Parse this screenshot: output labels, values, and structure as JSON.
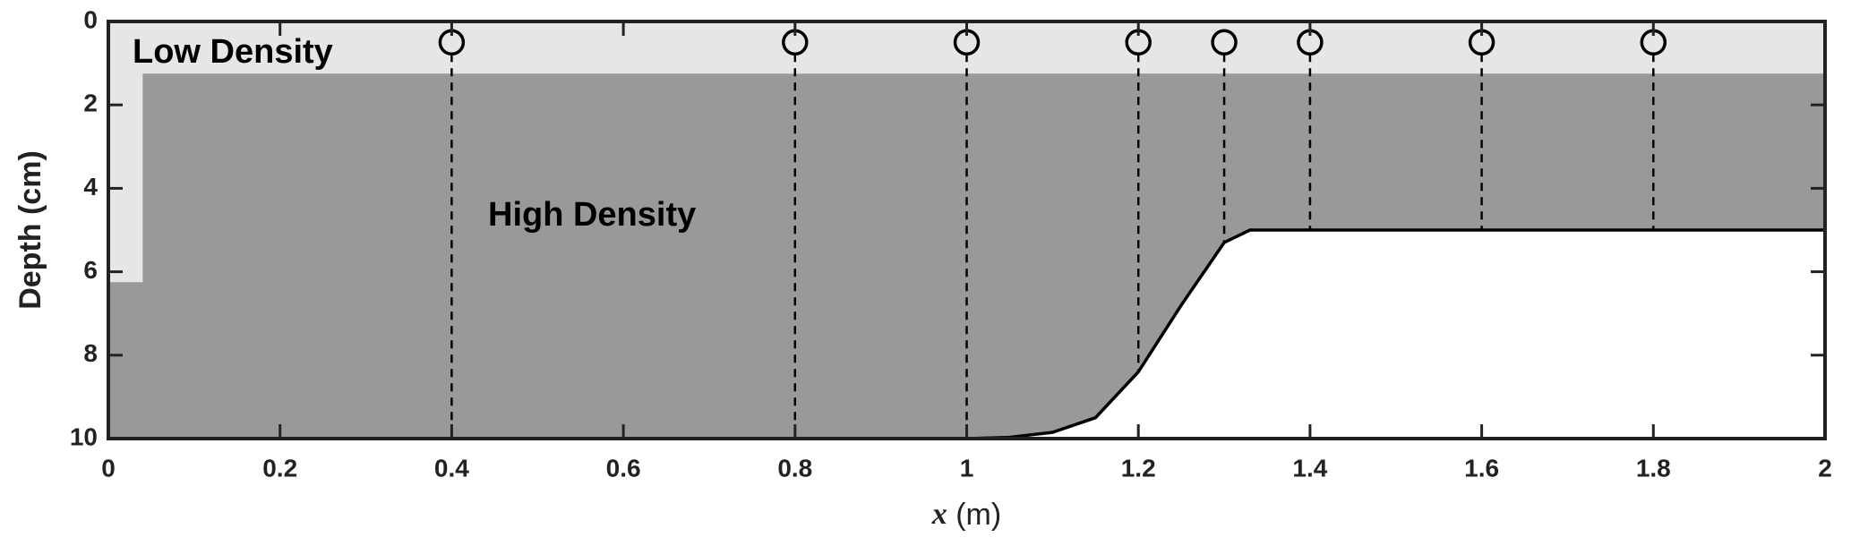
{
  "chart_data": {
    "type": "area",
    "xlabel_symbol": "x",
    "xlabel_unit": "(m)",
    "ylabel": "Depth (cm)",
    "annotations": [
      "Low Density",
      "High Density"
    ],
    "xlim": [
      0,
      2
    ],
    "xticks": [
      0,
      0.2,
      0.4,
      0.6,
      0.8,
      1,
      1.2,
      1.4,
      1.6,
      1.8,
      2
    ],
    "ylim": [
      0,
      10
    ],
    "y_reversed": true,
    "yticks": [
      0,
      2,
      4,
      6,
      8,
      10
    ],
    "low_color": "#e6e6e6",
    "high_color": "#999999",
    "bed_color": "#ffffff",
    "interface": {
      "x": [
        0,
        0.04,
        0.04,
        2
      ],
      "y": [
        6.25,
        6.25,
        1.25,
        1.25
      ]
    },
    "bed": {
      "x": [
        0,
        1.0,
        1.05,
        1.1,
        1.15,
        1.2,
        1.25,
        1.3,
        1.33,
        2
      ],
      "y": [
        10,
        10,
        9.97,
        9.85,
        9.5,
        8.4,
        6.8,
        5.3,
        5.0,
        5.0
      ]
    },
    "gauges": {
      "x": [
        0.4,
        0.8,
        1.0,
        1.2,
        1.3,
        1.4,
        1.6,
        1.8
      ],
      "depth": [
        0.5,
        0.5,
        0.5,
        0.5,
        0.5,
        0.5,
        0.5,
        0.5
      ]
    }
  }
}
